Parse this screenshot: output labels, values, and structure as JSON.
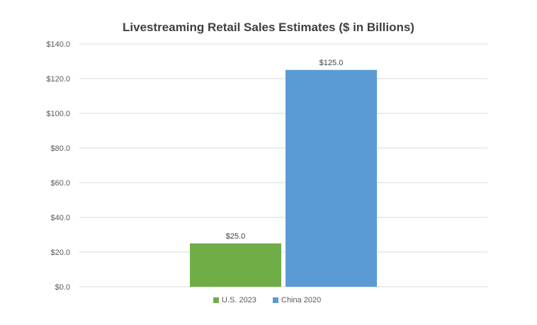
{
  "chart_data": {
    "type": "bar",
    "title": "Livestreaming Retail Sales Estimates ($ in Billions)",
    "xlabel": "",
    "ylabel": "",
    "ylim": [
      0,
      140
    ],
    "y_ticks": [
      "$0.0",
      "$20.0",
      "$40.0",
      "$60.0",
      "$80.0",
      "$100.0",
      "$120.0",
      "$140.0"
    ],
    "y_tick_values": [
      0,
      20,
      40,
      60,
      80,
      100,
      120,
      140
    ],
    "grid": true,
    "legend_position": "bottom",
    "series": [
      {
        "name": "U.S. 2023",
        "value": 25.0,
        "label": "$25.0",
        "color": "#70ad47"
      },
      {
        "name": "China 2020",
        "value": 125.0,
        "label": "$125.0",
        "color": "#5b9bd5"
      }
    ]
  }
}
